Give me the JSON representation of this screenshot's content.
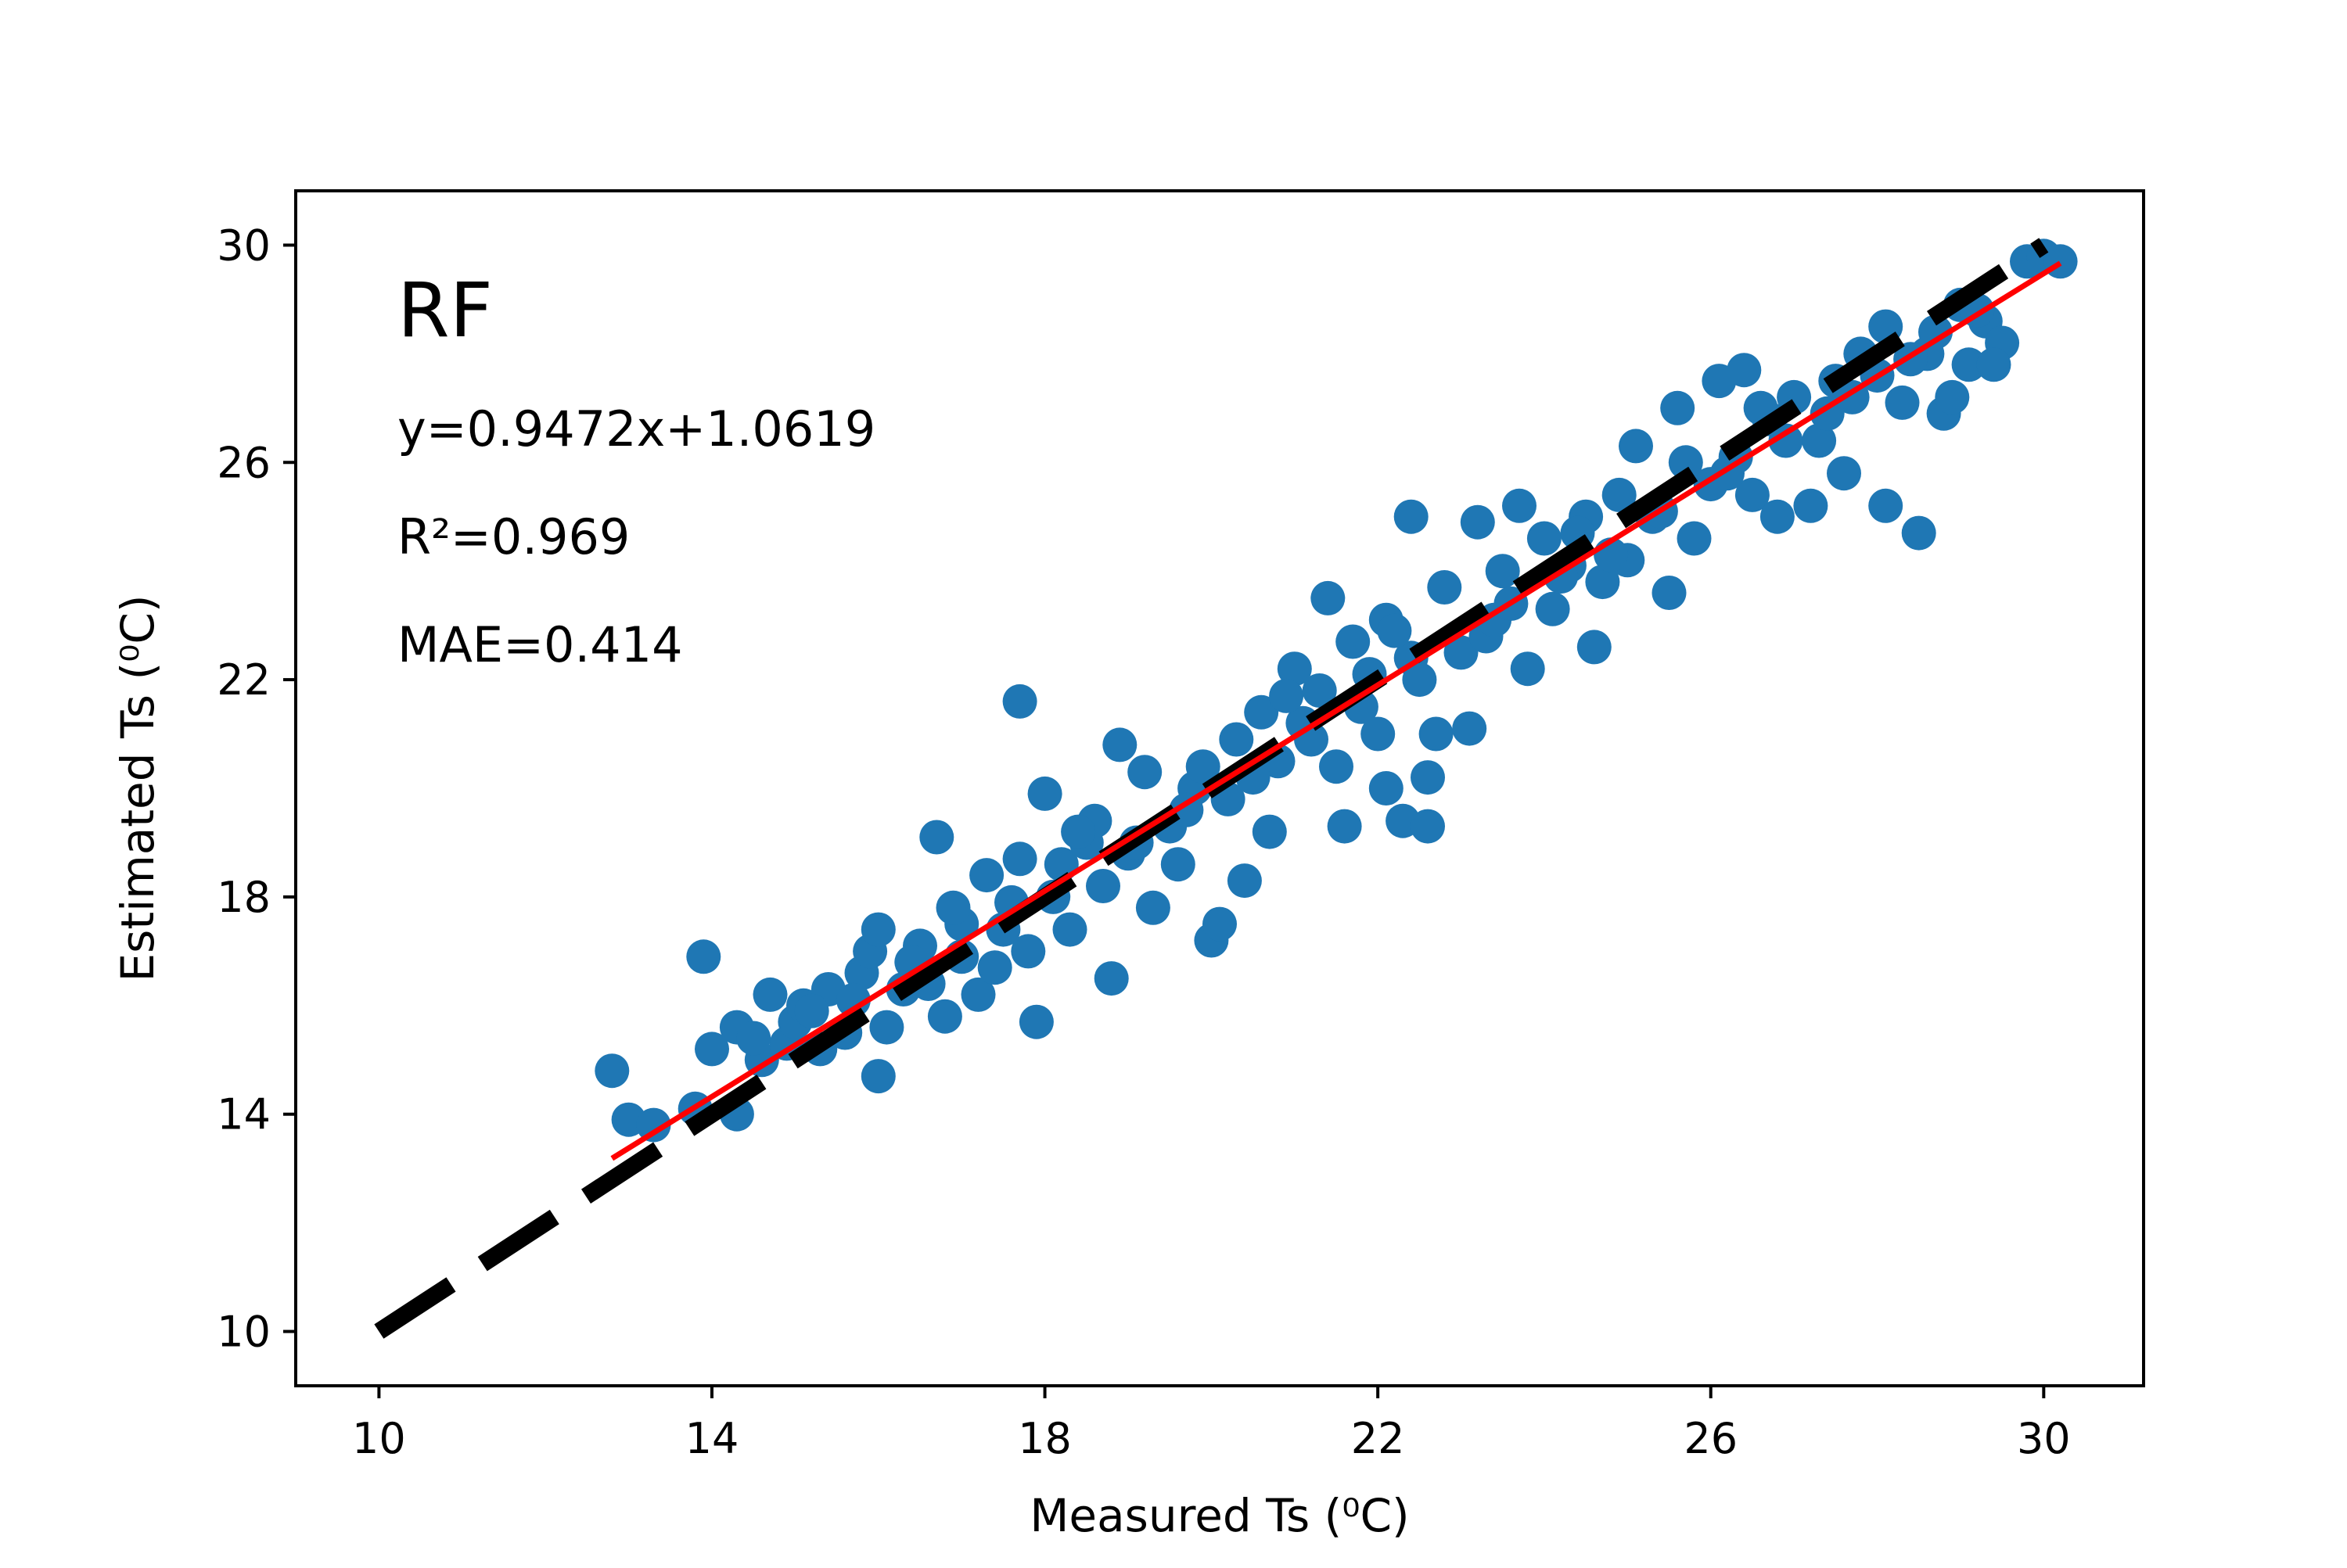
{
  "chart_data": {
    "type": "scatter",
    "xlabel": "Measured Ts (⁰C)",
    "ylabel": "Estimated Ts (⁰C)",
    "xlim": [
      9.0,
      31.2
    ],
    "ylim": [
      9.0,
      31.0
    ],
    "xticks": [
      10,
      14,
      18,
      22,
      26,
      30
    ],
    "yticks": [
      10,
      14,
      18,
      22,
      26,
      30
    ],
    "grid": false,
    "annotations": {
      "label": "RF",
      "equation": "y=0.9472x+1.0619",
      "r2": "R²=0.969",
      "mae": "MAE=0.414"
    },
    "reference_line": {
      "from": [
        10,
        10
      ],
      "to": [
        30,
        30
      ],
      "color": "#000000",
      "style": "dashed"
    },
    "fit_line": {
      "slope": 0.9472,
      "intercept": 1.0619,
      "x_range": [
        12.8,
        30.2
      ],
      "color": "#ff0000"
    },
    "series": [
      {
        "color": "#1f77b4",
        "points": [
          [
            12.8,
            14.8
          ],
          [
            13.0,
            13.9
          ],
          [
            13.3,
            13.8
          ],
          [
            13.8,
            14.1
          ],
          [
            14.0,
            15.2
          ],
          [
            13.9,
            16.9
          ],
          [
            14.3,
            15.6
          ],
          [
            14.3,
            14.0
          ],
          [
            14.6,
            15.0
          ],
          [
            14.7,
            16.2
          ],
          [
            14.9,
            15.3
          ],
          [
            15.0,
            15.7
          ],
          [
            15.1,
            16.0
          ],
          [
            15.3,
            15.2
          ],
          [
            15.4,
            16.3
          ],
          [
            15.6,
            15.5
          ],
          [
            15.8,
            16.6
          ],
          [
            15.9,
            17.0
          ],
          [
            16.0,
            14.7
          ],
          [
            16.1,
            15.6
          ],
          [
            16.0,
            17.4
          ],
          [
            16.3,
            16.3
          ],
          [
            16.5,
            17.1
          ],
          [
            16.6,
            16.4
          ],
          [
            16.8,
            15.8
          ],
          [
            16.7,
            19.1
          ],
          [
            17.0,
            17.5
          ],
          [
            17.2,
            16.2
          ],
          [
            17.3,
            18.4
          ],
          [
            17.4,
            16.7
          ],
          [
            17.5,
            17.4
          ],
          [
            17.7,
            18.7
          ],
          [
            17.8,
            17.0
          ],
          [
            17.9,
            15.7
          ],
          [
            18.0,
            19.9
          ],
          [
            18.1,
            18.0
          ],
          [
            17.7,
            21.6
          ],
          [
            18.3,
            17.4
          ],
          [
            18.5,
            19.0
          ],
          [
            18.7,
            18.2
          ],
          [
            18.8,
            16.5
          ],
          [
            18.9,
            20.8
          ],
          [
            19.0,
            18.8
          ],
          [
            19.2,
            20.3
          ],
          [
            19.3,
            17.8
          ],
          [
            19.5,
            19.3
          ],
          [
            19.6,
            18.6
          ],
          [
            19.8,
            20.0
          ],
          [
            20.0,
            17.2
          ],
          [
            20.1,
            17.5
          ],
          [
            20.2,
            19.8
          ],
          [
            20.3,
            20.9
          ],
          [
            20.4,
            18.3
          ],
          [
            20.6,
            21.4
          ],
          [
            20.7,
            19.2
          ],
          [
            20.8,
            20.5
          ],
          [
            21.0,
            22.2
          ],
          [
            21.1,
            21.2
          ],
          [
            21.3,
            21.8
          ],
          [
            21.4,
            23.5
          ],
          [
            21.5,
            20.4
          ],
          [
            21.6,
            19.3
          ],
          [
            21.7,
            22.7
          ],
          [
            21.9,
            22.1
          ],
          [
            22.0,
            21.0
          ],
          [
            22.1,
            23.1
          ],
          [
            22.1,
            20.0
          ],
          [
            22.3,
            19.4
          ],
          [
            22.4,
            22.4
          ],
          [
            22.6,
            20.2
          ],
          [
            22.6,
            19.3
          ],
          [
            22.7,
            21.0
          ],
          [
            22.8,
            23.7
          ],
          [
            22.4,
            25.0
          ],
          [
            23.0,
            22.5
          ],
          [
            23.1,
            21.1
          ],
          [
            23.2,
            24.9
          ],
          [
            23.3,
            22.8
          ],
          [
            23.5,
            24.0
          ],
          [
            23.7,
            25.2
          ],
          [
            23.8,
            22.2
          ],
          [
            24.0,
            24.6
          ],
          [
            24.1,
            23.3
          ],
          [
            24.3,
            24.1
          ],
          [
            24.5,
            25.0
          ],
          [
            24.6,
            22.6
          ],
          [
            24.7,
            23.8
          ],
          [
            24.9,
            25.4
          ],
          [
            25.0,
            24.2
          ],
          [
            25.1,
            26.3
          ],
          [
            25.3,
            25.0
          ],
          [
            25.5,
            23.6
          ],
          [
            25.6,
            27.0
          ],
          [
            25.8,
            24.6
          ],
          [
            26.0,
            25.6
          ],
          [
            26.1,
            27.5
          ],
          [
            26.3,
            26.1
          ],
          [
            26.4,
            27.7
          ],
          [
            26.5,
            25.4
          ],
          [
            26.7,
            26.8
          ],
          [
            26.8,
            25.0
          ],
          [
            27.0,
            27.2
          ],
          [
            27.2,
            25.2
          ],
          [
            27.3,
            26.4
          ],
          [
            27.5,
            27.5
          ],
          [
            27.6,
            25.8
          ],
          [
            27.8,
            28.0
          ],
          [
            28.0,
            27.6
          ],
          [
            28.1,
            28.5
          ],
          [
            28.1,
            25.2
          ],
          [
            28.3,
            27.1
          ],
          [
            28.5,
            24.7
          ],
          [
            28.6,
            28.0
          ],
          [
            28.8,
            26.9
          ],
          [
            28.9,
            27.2
          ],
          [
            29.0,
            28.9
          ],
          [
            29.1,
            27.8
          ],
          [
            29.3,
            28.6
          ],
          [
            29.5,
            28.2
          ],
          [
            29.4,
            27.8
          ],
          [
            29.8,
            29.7
          ],
          [
            30.0,
            29.8
          ],
          [
            30.2,
            29.7
          ],
          [
            14.5,
            15.4
          ],
          [
            15.2,
            15.9
          ],
          [
            16.4,
            16.8
          ],
          [
            17.0,
            16.9
          ],
          [
            17.6,
            17.9
          ],
          [
            18.2,
            18.6
          ],
          [
            18.6,
            19.4
          ],
          [
            19.1,
            19.0
          ],
          [
            19.7,
            19.6
          ],
          [
            20.5,
            20.2
          ],
          [
            21.2,
            20.9
          ],
          [
            21.8,
            21.5
          ],
          [
            22.5,
            22.0
          ],
          [
            23.4,
            23.1
          ],
          [
            24.2,
            23.9
          ],
          [
            24.8,
            24.3
          ],
          [
            25.4,
            25.1
          ],
          [
            26.2,
            25.8
          ],
          [
            26.9,
            26.4
          ],
          [
            27.7,
            27.2
          ],
          [
            28.4,
            27.9
          ],
          [
            29.2,
            28.8
          ],
          [
            15.7,
            16.1
          ],
          [
            16.9,
            17.8
          ],
          [
            18.4,
            19.2
          ],
          [
            19.9,
            20.4
          ],
          [
            20.9,
            21.7
          ],
          [
            22.2,
            22.9
          ],
          [
            23.6,
            23.4
          ],
          [
            24.4,
            24.7
          ],
          [
            25.7,
            26.0
          ],
          [
            26.6,
            27.0
          ],
          [
            27.4,
            26.9
          ],
          [
            28.7,
            28.4
          ]
        ]
      }
    ]
  }
}
